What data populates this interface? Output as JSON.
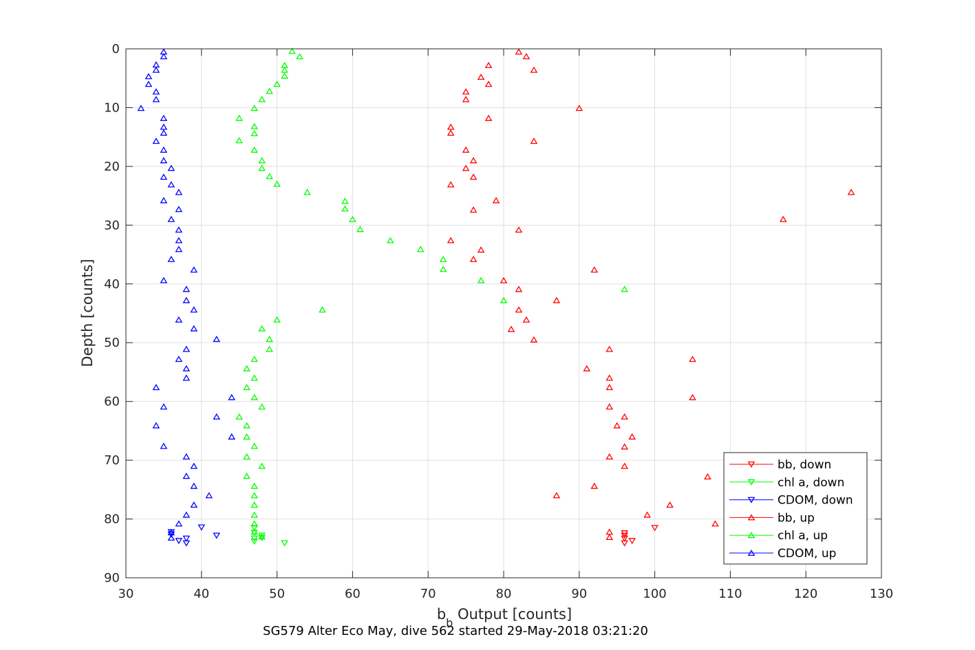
{
  "chart_data": {
    "type": "scatter",
    "title": "SG579 Alter Eco May, dive 562 started 29-May-2018 03:21:20",
    "xlabel_main": "b",
    "xlabel_sub": "b",
    "xlabel_rest": " Output [counts]",
    "ylabel": "Depth [counts]",
    "xlim": [
      30,
      130
    ],
    "ylim": [
      0,
      90
    ],
    "y_reversed": true,
    "xticks": [
      30,
      40,
      50,
      60,
      70,
      80,
      90,
      100,
      110,
      120,
      130
    ],
    "yticks": [
      0,
      10,
      20,
      30,
      40,
      50,
      60,
      70,
      80,
      90
    ],
    "grid": true,
    "legend_position": "bottom-right",
    "series": [
      {
        "name": "bb, down",
        "color": "#ff0000",
        "marker": "triangle-down",
        "points": [
          [
            96,
            82.8
          ],
          [
            96,
            83.3
          ],
          [
            97,
            83.7
          ],
          [
            96,
            84.1
          ],
          [
            100,
            81.5
          ],
          [
            96,
            82.4
          ]
        ]
      },
      {
        "name": "chl a, down",
        "color": "#00ff00",
        "marker": "triangle-down",
        "points": [
          [
            48,
            82.8
          ],
          [
            47,
            83.3
          ],
          [
            48,
            83.2
          ],
          [
            47,
            83.8
          ],
          [
            51,
            84.1
          ],
          [
            47,
            81.5
          ],
          [
            47,
            82.3
          ]
        ]
      },
      {
        "name": "CDOM, down",
        "color": "#0000ff",
        "marker": "triangle-down",
        "points": [
          [
            36,
            82.2
          ],
          [
            38,
            83.3
          ],
          [
            37,
            83.7
          ],
          [
            38,
            84.1
          ],
          [
            40,
            81.4
          ],
          [
            42,
            82.8
          ],
          [
            36,
            82.6
          ]
        ]
      },
      {
        "name": "bb, up",
        "color": "#ff0000",
        "marker": "triangle-up",
        "points": [
          [
            82,
            0.5
          ],
          [
            83,
            1.3
          ],
          [
            78,
            2.8
          ],
          [
            84,
            3.6
          ],
          [
            77,
            4.8
          ],
          [
            78,
            6
          ],
          [
            75,
            7.3
          ],
          [
            75,
            8.6
          ],
          [
            90,
            10.1
          ],
          [
            78,
            11.8
          ],
          [
            73,
            13.3
          ],
          [
            73,
            14.3
          ],
          [
            84,
            15.7
          ],
          [
            75,
            17.2
          ],
          [
            76,
            19
          ],
          [
            75,
            20.3
          ],
          [
            76,
            21.8
          ],
          [
            73,
            23.1
          ],
          [
            126,
            24.4
          ],
          [
            79,
            25.8
          ],
          [
            76,
            27.4
          ],
          [
            117,
            29
          ],
          [
            82,
            30.8
          ],
          [
            73,
            32.6
          ],
          [
            77,
            34.2
          ],
          [
            76,
            35.8
          ],
          [
            92,
            37.6
          ],
          [
            80,
            39.4
          ],
          [
            82,
            40.9
          ],
          [
            87,
            42.8
          ],
          [
            82,
            44.4
          ],
          [
            83,
            46.1
          ],
          [
            81,
            47.7
          ],
          [
            84,
            49.5
          ],
          [
            94,
            51.1
          ],
          [
            105,
            52.8
          ],
          [
            91,
            54.4
          ],
          [
            94,
            56
          ],
          [
            94,
            57.6
          ],
          [
            105,
            59.3
          ],
          [
            94,
            60.9
          ],
          [
            96,
            62.6
          ],
          [
            95,
            64.1
          ],
          [
            97,
            66
          ],
          [
            96,
            67.7
          ],
          [
            94,
            69.4
          ],
          [
            96,
            71
          ],
          [
            107,
            72.8
          ],
          [
            92,
            74.4
          ],
          [
            87,
            76
          ],
          [
            102,
            77.6
          ],
          [
            99,
            79.3
          ],
          [
            108,
            80.8
          ],
          [
            94,
            82.2
          ],
          [
            94,
            83.1
          ]
        ]
      },
      {
        "name": "chl a, up",
        "color": "#00ff00",
        "marker": "triangle-up",
        "points": [
          [
            52,
            0.4
          ],
          [
            53,
            1.3
          ],
          [
            51,
            2.8
          ],
          [
            51,
            3.6
          ],
          [
            51,
            4.6
          ],
          [
            50,
            6
          ],
          [
            49,
            7.2
          ],
          [
            48,
            8.6
          ],
          [
            47,
            10.1
          ],
          [
            45,
            11.8
          ],
          [
            47,
            13.2
          ],
          [
            47,
            14.4
          ],
          [
            45,
            15.6
          ],
          [
            47,
            17.2
          ],
          [
            48,
            19
          ],
          [
            48,
            20.3
          ],
          [
            49,
            21.7
          ],
          [
            50,
            23
          ],
          [
            54,
            24.4
          ],
          [
            59,
            25.9
          ],
          [
            59,
            27.2
          ],
          [
            60,
            29
          ],
          [
            61,
            30.7
          ],
          [
            65,
            32.6
          ],
          [
            69,
            34.1
          ],
          [
            72,
            35.8
          ],
          [
            72,
            37.5
          ],
          [
            77,
            39.4
          ],
          [
            96,
            40.9
          ],
          [
            80,
            42.8
          ],
          [
            56,
            44.4
          ],
          [
            50,
            46.1
          ],
          [
            48,
            47.6
          ],
          [
            49,
            49.4
          ],
          [
            49,
            51.1
          ],
          [
            47,
            52.8
          ],
          [
            46,
            54.4
          ],
          [
            47,
            56
          ],
          [
            46,
            57.6
          ],
          [
            47,
            59.3
          ],
          [
            48,
            60.9
          ],
          [
            45,
            62.6
          ],
          [
            46,
            64.1
          ],
          [
            46,
            66
          ],
          [
            47,
            67.6
          ],
          [
            46,
            69.4
          ],
          [
            48,
            71
          ],
          [
            46,
            72.7
          ],
          [
            47,
            74.4
          ],
          [
            47,
            76
          ],
          [
            47,
            77.6
          ],
          [
            47,
            79.3
          ],
          [
            47,
            80.8
          ],
          [
            47,
            82.2
          ],
          [
            48,
            83
          ]
        ]
      },
      {
        "name": "CDOM, up",
        "color": "#0000ff",
        "marker": "triangle-up",
        "points": [
          [
            35,
            0.5
          ],
          [
            35,
            1.3
          ],
          [
            34,
            2.7
          ],
          [
            34,
            3.6
          ],
          [
            33,
            4.7
          ],
          [
            33,
            6
          ],
          [
            34,
            7.3
          ],
          [
            34,
            8.6
          ],
          [
            32,
            10.1
          ],
          [
            35,
            11.8
          ],
          [
            35,
            13.3
          ],
          [
            35,
            14.3
          ],
          [
            34,
            15.7
          ],
          [
            35,
            17.2
          ],
          [
            35,
            19
          ],
          [
            36,
            20.3
          ],
          [
            35,
            21.8
          ],
          [
            36,
            23.1
          ],
          [
            37,
            24.4
          ],
          [
            35,
            25.8
          ],
          [
            37,
            27.3
          ],
          [
            36,
            29
          ],
          [
            37,
            30.8
          ],
          [
            37,
            32.6
          ],
          [
            37,
            34.1
          ],
          [
            36,
            35.8
          ],
          [
            39,
            37.6
          ],
          [
            35,
            39.4
          ],
          [
            38,
            40.9
          ],
          [
            38,
            42.8
          ],
          [
            39,
            44.4
          ],
          [
            37,
            46.1
          ],
          [
            39,
            47.6
          ],
          [
            42,
            49.4
          ],
          [
            38,
            51.1
          ],
          [
            37,
            52.8
          ],
          [
            38,
            54.4
          ],
          [
            38,
            56
          ],
          [
            34,
            57.6
          ],
          [
            35,
            60.9
          ],
          [
            44,
            59.3
          ],
          [
            42,
            62.6
          ],
          [
            34,
            64.1
          ],
          [
            44,
            66
          ],
          [
            35,
            67.6
          ],
          [
            38,
            69.4
          ],
          [
            39,
            71
          ],
          [
            38,
            72.7
          ],
          [
            39,
            74.4
          ],
          [
            41,
            76
          ],
          [
            39,
            77.6
          ],
          [
            38,
            79.3
          ],
          [
            37,
            80.8
          ],
          [
            36,
            82.3
          ],
          [
            36,
            83.2
          ]
        ]
      }
    ]
  }
}
